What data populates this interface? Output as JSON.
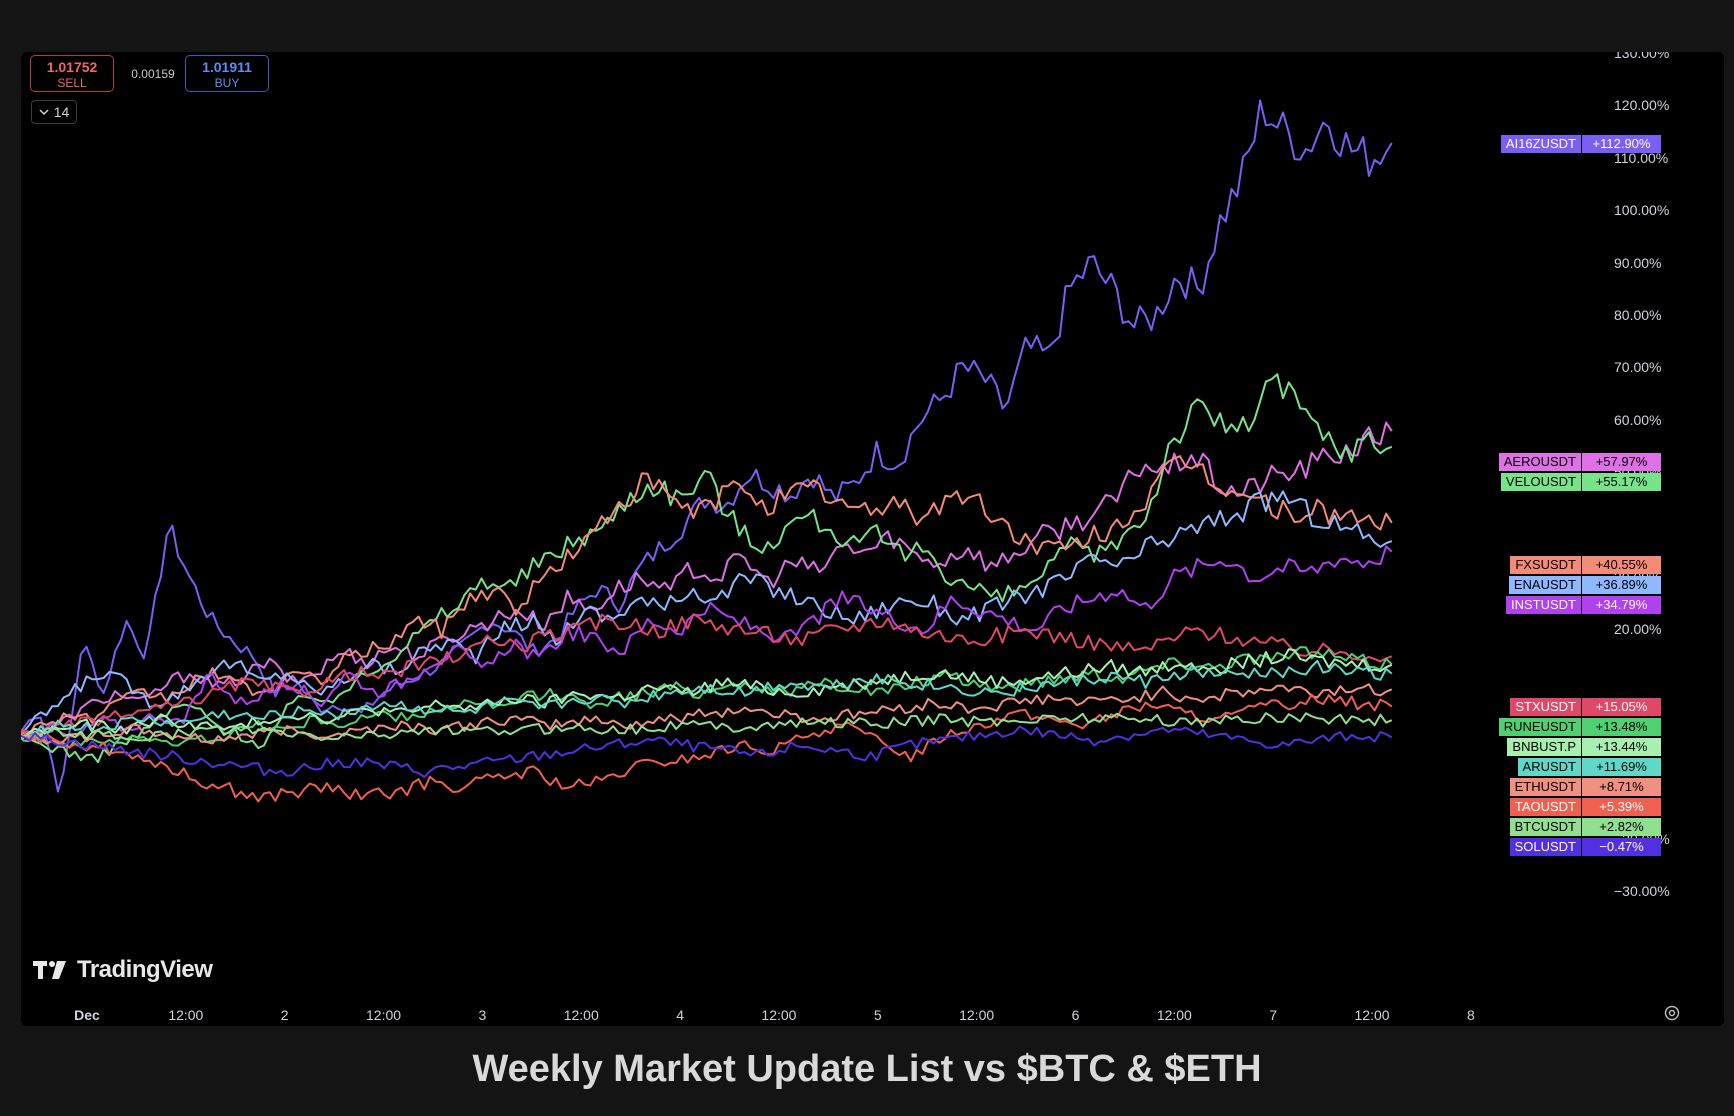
{
  "trading_panel": {
    "sell_price": "1.01752",
    "sell_label": "SELL",
    "spread": "0.00159",
    "buy_price": "1.01911",
    "buy_label": "BUY",
    "indicator_count": "14"
  },
  "watermark": "TradingView",
  "caption": "Weekly Market Update List vs $BTC & $ETH",
  "chart_data": {
    "type": "line",
    "y_unit": "percent",
    "ylim": [
      -30,
      130
    ],
    "y_ticks": [
      "130.00%",
      "120.00%",
      "110.00%",
      "100.00%",
      "90.00%",
      "80.00%",
      "70.00%",
      "60.00%",
      "50.00%",
      "30.00%",
      "20.00%",
      "−20.00%",
      "−30.00%"
    ],
    "y_tick_values": [
      130,
      120,
      110,
      100,
      90,
      80,
      70,
      60,
      50,
      30,
      20,
      -20,
      -30
    ],
    "x_ticks": [
      "Dec",
      "12:00",
      "2",
      "12:00",
      "3",
      "12:00",
      "4",
      "12:00",
      "5",
      "12:00",
      "6",
      "12:00",
      "7",
      "12:00",
      "8"
    ],
    "x_tick_positions_days": [
      0,
      0.5,
      1,
      1.5,
      2,
      2.5,
      3,
      3.5,
      4,
      4.5,
      5,
      5.5,
      6,
      6.5,
      7
    ],
    "xlim_days": [
      -0.35,
      7.0
    ],
    "grid": false,
    "series": [
      {
        "name": "AI16ZUSDT",
        "last": "+112.90%",
        "color": "#7b5ff5",
        "values": [
          0,
          5,
          -12,
          18,
          8,
          22,
          15,
          40,
          30,
          22,
          18,
          15,
          8,
          10,
          5,
          6,
          4,
          8,
          10,
          12,
          14,
          18,
          22,
          20,
          16,
          18,
          24,
          28,
          25,
          32,
          36,
          40,
          45,
          44,
          50,
          48,
          46,
          50,
          45,
          48,
          54,
          52,
          60,
          64,
          70,
          68,
          62,
          74,
          72,
          85,
          90,
          85,
          78,
          80,
          88,
          85,
          98,
          106,
          120,
          115,
          112,
          118,
          112,
          110,
          113
        ]
      },
      {
        "name": "AEROUSDT",
        "last": "+57.97%",
        "color": "#e070e6",
        "values": [
          0,
          1,
          3,
          6,
          8,
          6,
          10,
          12,
          9,
          11,
          14,
          10,
          12,
          16,
          14,
          17,
          15,
          18,
          20,
          22,
          24,
          21,
          26,
          24,
          28,
          30,
          27,
          32,
          30,
          34,
          29,
          33,
          31,
          36,
          35,
          38,
          34,
          33,
          36,
          32,
          35,
          38,
          40,
          42,
          45,
          52,
          50,
          54,
          48,
          46,
          49,
          50,
          52,
          54,
          56,
          58
        ]
      },
      {
        "name": "VELOUSDT",
        "last": "+55.17%",
        "color": "#78e48a",
        "values": [
          0,
          -2,
          -3,
          -5,
          -2,
          0,
          4,
          6,
          2,
          0,
          -2,
          5,
          8,
          6,
          12,
          14,
          18,
          22,
          25,
          30,
          28,
          32,
          35,
          38,
          40,
          46,
          48,
          45,
          50,
          42,
          36,
          38,
          42,
          40,
          36,
          38,
          34,
          36,
          30,
          28,
          26,
          28,
          32,
          36,
          34,
          38,
          42,
          56,
          62,
          60,
          58,
          68,
          64,
          58,
          54,
          56,
          55
        ]
      },
      {
        "name": "FXSUSDT",
        "last": "+40.55%",
        "color": "#f48a78",
        "values": [
          0,
          2,
          4,
          3,
          6,
          8,
          7,
          10,
          12,
          9,
          8,
          12,
          10,
          14,
          16,
          18,
          22,
          20,
          26,
          28,
          24,
          30,
          34,
          38,
          44,
          48,
          46,
          42,
          45,
          48,
          44,
          46,
          47,
          44,
          42,
          45,
          42,
          44,
          46,
          42,
          38,
          36,
          35,
          38,
          40,
          44,
          50,
          52,
          48,
          46,
          44,
          42,
          43,
          42,
          41,
          40.5
        ]
      },
      {
        "name": "ENAUSDT",
        "last": "+36.89%",
        "color": "#8fb8ff",
        "values": [
          0,
          4,
          8,
          12,
          10,
          6,
          8,
          12,
          14,
          10,
          12,
          8,
          10,
          14,
          12,
          16,
          18,
          15,
          20,
          22,
          18,
          24,
          22,
          26,
          24,
          28,
          26,
          30,
          28,
          26,
          24,
          22,
          24,
          26,
          25,
          22,
          24,
          26,
          28,
          30,
          34,
          32,
          36,
          38,
          40,
          42,
          44,
          46,
          42,
          40,
          38,
          37
        ]
      },
      {
        "name": "INSTUSDT",
        "last": "+34.79%",
        "color": "#b040f0",
        "values": [
          0,
          2,
          -1,
          3,
          1,
          4,
          2,
          12,
          6,
          8,
          10,
          6,
          12,
          8,
          10,
          14,
          16,
          12,
          18,
          14,
          20,
          18,
          16,
          22,
          20,
          24,
          22,
          20,
          18,
          22,
          26,
          24,
          22,
          20,
          26,
          24,
          22,
          20,
          24,
          26,
          28,
          24,
          30,
          32,
          34,
          30,
          32,
          31,
          34,
          33,
          35
        ]
      },
      {
        "name": "STXUSDT",
        "last": "+15.05%",
        "color": "#e04868",
        "values": [
          0,
          1,
          2,
          3,
          4,
          5,
          6,
          8,
          10,
          9,
          8,
          10,
          12,
          11,
          13,
          14,
          16,
          18,
          17,
          19,
          20,
          22,
          21,
          20,
          22,
          21,
          20,
          19,
          18,
          20,
          21,
          22,
          20,
          19,
          18,
          19,
          20,
          19,
          18,
          17,
          16,
          18,
          20,
          19,
          18,
          17,
          16,
          16,
          15.5,
          15
        ]
      },
      {
        "name": "RUNEUSDT",
        "last": "+13.48%",
        "color": "#50d070",
        "values": [
          0,
          -1,
          -2,
          -1,
          0,
          -2,
          -1,
          0,
          2,
          1,
          3,
          2,
          4,
          3,
          5,
          6,
          5,
          7,
          8,
          6,
          7,
          8,
          9,
          8,
          10,
          9,
          8,
          10,
          9,
          8,
          10,
          11,
          10,
          9,
          10,
          11,
          12,
          11,
          13,
          14,
          13,
          15,
          14,
          16,
          15,
          14,
          13.5
        ]
      },
      {
        "name": "BNBUST.P",
        "last": "+13.44%",
        "color": "#a8f0b0",
        "values": [
          0,
          1,
          2,
          1,
          3,
          2,
          1,
          3,
          4,
          3,
          5,
          4,
          6,
          5,
          7,
          6,
          8,
          7,
          9,
          8,
          10,
          9,
          8,
          9,
          10,
          11,
          12,
          11,
          10,
          11,
          12,
          13,
          12,
          14,
          13,
          14,
          15,
          14,
          13.5,
          13.4
        ]
      },
      {
        "name": "ARUSDT",
        "last": "+11.69%",
        "color": "#60d8c8",
        "values": [
          0,
          2,
          1,
          3,
          2,
          4,
          3,
          5,
          4,
          6,
          5,
          4,
          6,
          5,
          7,
          6,
          8,
          9,
          8,
          10,
          9,
          11,
          10,
          9,
          8,
          9,
          10,
          11,
          10,
          12,
          11,
          12,
          13,
          12,
          11.7
        ]
      },
      {
        "name": "ETHUSDT",
        "last": "+8.71%",
        "color": "#f09080",
        "values": [
          0,
          -1,
          0,
          1,
          0,
          -1,
          0,
          1,
          0,
          1,
          2,
          1,
          2,
          3,
          2,
          3,
          2,
          3,
          4,
          5,
          4,
          3,
          4,
          5,
          6,
          5,
          6,
          7,
          6,
          7,
          8,
          7,
          8,
          9,
          8,
          9,
          8.7
        ]
      },
      {
        "name": "TAOUSDT",
        "last": "+5.39%",
        "color": "#f06050",
        "values": [
          0,
          -1,
          -2,
          -3,
          -5,
          -8,
          -10,
          -12,
          -11,
          -10,
          -12,
          -11,
          -9,
          -10,
          -8,
          -7,
          -10,
          -9,
          -6,
          -5,
          -4,
          -2,
          -3,
          0,
          2,
          -1,
          -4,
          0,
          2,
          4,
          3,
          2,
          4,
          6,
          4,
          3,
          5,
          6,
          7,
          6,
          5.4
        ]
      },
      {
        "name": "BTCUSDT",
        "last": "+2.82%",
        "color": "#90e090",
        "values": [
          0,
          0.5,
          -0.5,
          0,
          1,
          0.5,
          -0.5,
          0,
          1,
          0.5,
          1,
          1.5,
          1,
          2,
          1.5,
          2,
          2.5,
          2,
          3,
          2.5,
          3,
          3.5,
          3,
          2.5,
          3,
          3.5,
          3,
          2.8
        ]
      },
      {
        "name": "SOLUSDT",
        "last": "−0.47%",
        "color": "#5030e0",
        "values": [
          0,
          -1,
          -2,
          -3,
          -4,
          -5,
          -6,
          -7,
          -6,
          -5,
          -6,
          -7,
          -6,
          -5,
          -4,
          -3,
          -2,
          -1,
          -2,
          -3,
          -4,
          -2,
          -3,
          -4,
          -2,
          -1,
          0,
          1,
          0,
          -1,
          0,
          1,
          0,
          -1,
          -2,
          -1,
          0,
          -0.5
        ]
      }
    ]
  }
}
